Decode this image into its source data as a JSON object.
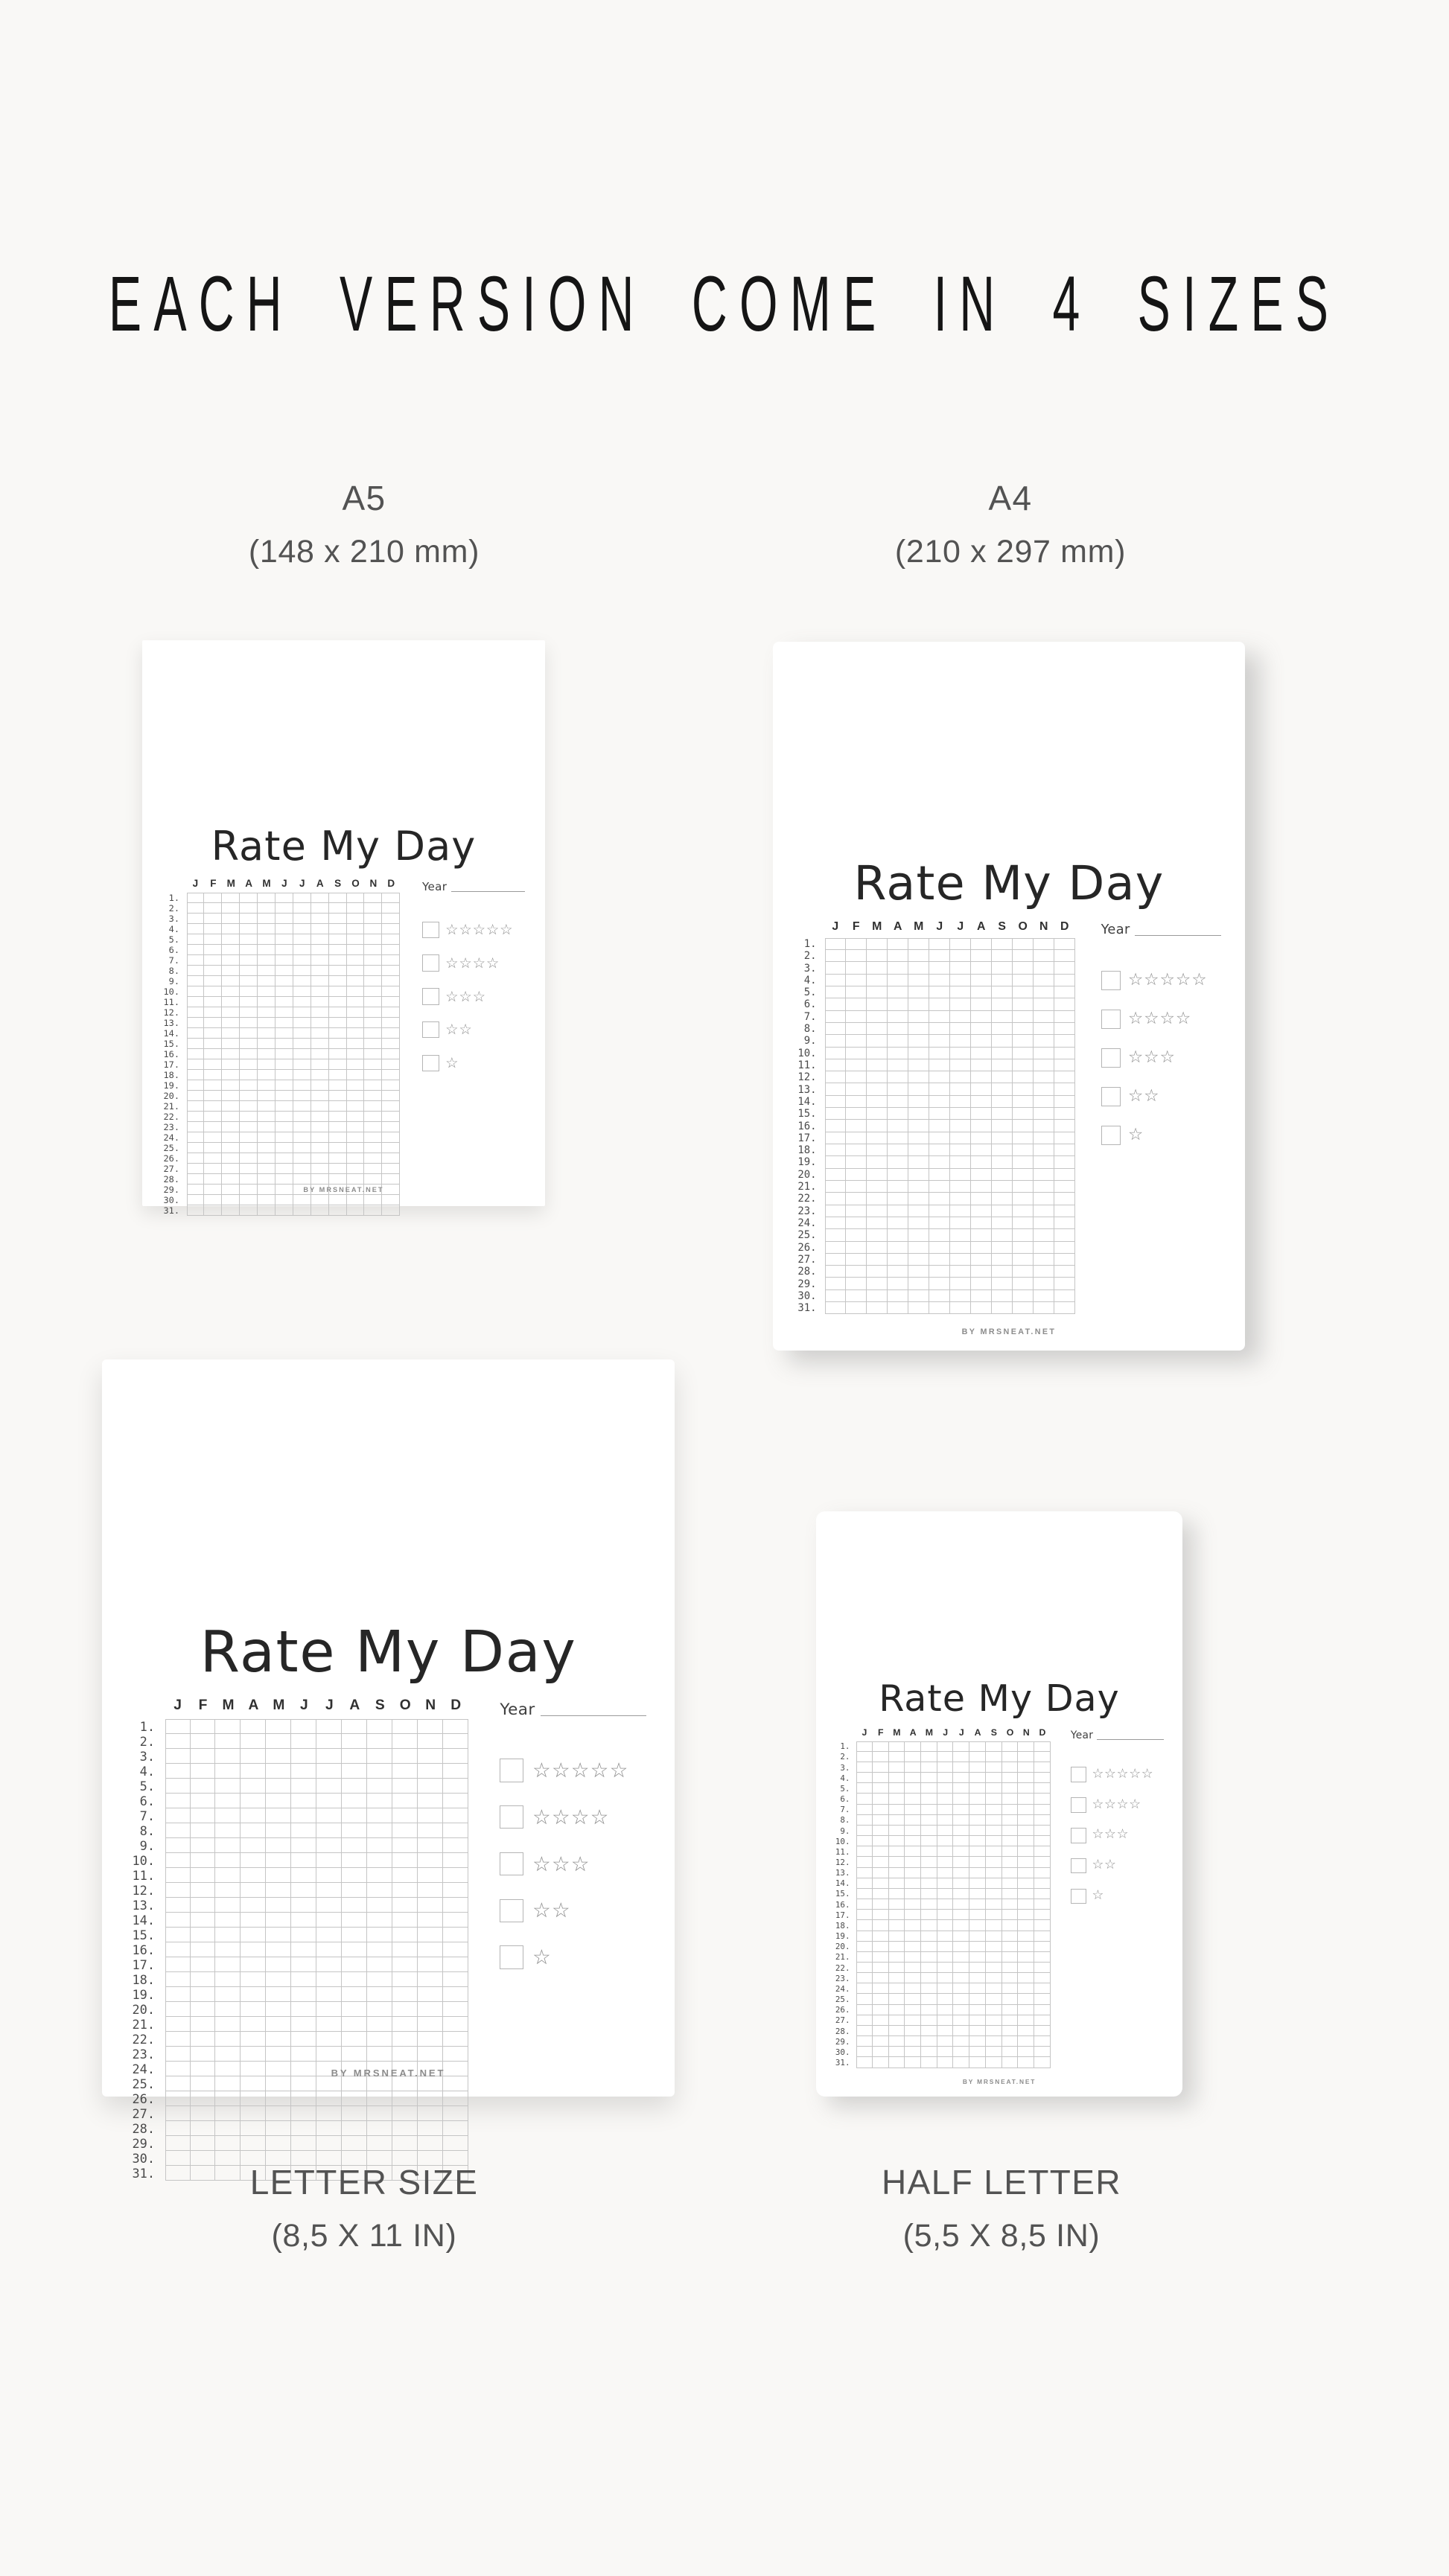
{
  "page": {
    "heading": "EACH VERSION COME IN 4 SIZES",
    "background_color": "#f9f8f6",
    "paper_color": "#ffffff",
    "grid_line_color": "#c5c5c5",
    "label_color": "#535353"
  },
  "size_labels": {
    "a5": {
      "name": "A5",
      "dimensions": "(148 x 210 mm)"
    },
    "a4": {
      "name": "A4",
      "dimensions": "(210 x 297 mm)"
    },
    "letter": {
      "name": "LETTER SIZE",
      "dimensions": "(8,5 X 11 IN)"
    },
    "half_letter": {
      "name": "HALF LETTER",
      "dimensions": "(5,5 X 8,5 IN)"
    }
  },
  "planner": {
    "title": "Rate My Day",
    "year_label": "Year",
    "month_initials": [
      "J",
      "F",
      "M",
      "A",
      "M",
      "J",
      "J",
      "A",
      "S",
      "O",
      "N",
      "D"
    ],
    "day_count": 31,
    "day_number_suffix": ".",
    "rating_levels": [
      5,
      4,
      3,
      2,
      1
    ],
    "star_icon": "☆",
    "footer": "BY MRSNEAT.NET"
  }
}
